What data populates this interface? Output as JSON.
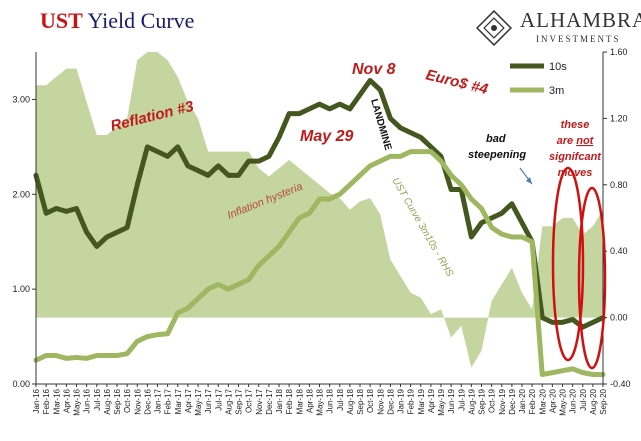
{
  "header": {
    "title_prefix": "UST",
    "title_rest": " Yield Curve",
    "logo_name": "ALHAMBRA",
    "logo_sub": "INVESTMENTS"
  },
  "chart_data": {
    "type": "line",
    "x": [
      "Jan-16",
      "Feb-16",
      "Mar-16",
      "Apr-16",
      "May-16",
      "Jun-16",
      "Jul-16",
      "Aug-16",
      "Sep-16",
      "Oct-16",
      "Nov-16",
      "Dec-16",
      "Jan-17",
      "Feb-17",
      "Mar-17",
      "Apr-17",
      "May-17",
      "Jun-17",
      "Jul-17",
      "Aug-17",
      "Sep-17",
      "Oct-17",
      "Nov-17",
      "Dec-17",
      "Jan-18",
      "Feb-18",
      "Mar-18",
      "Apr-18",
      "May-18",
      "Jun-18",
      "Jul-18",
      "Aug-18",
      "Sep-18",
      "Oct-18",
      "Nov-18",
      "Dec-18",
      "Jan-19",
      "Feb-19",
      "Mar-19",
      "Apr-19",
      "May-19",
      "Jun-19",
      "Jul-19",
      "Aug-19",
      "Sep-19",
      "Oct-19",
      "Nov-19",
      "Dec-19",
      "Jan-20",
      "Feb-20",
      "Mar-20",
      "Apr-20",
      "May-20",
      "Jun-20",
      "Jul-20",
      "Aug-20",
      "Sep-20"
    ],
    "y_left": {
      "min": 0,
      "max": 3.5,
      "ticks": [
        "0.00",
        "1.00",
        "2.00",
        "3.00"
      ]
    },
    "y_right": {
      "min": -0.4,
      "max": 1.6,
      "ticks": [
        "-0.40",
        "0.00",
        "0.40",
        "0.80",
        "1.20",
        "1.60"
      ]
    },
    "series": [
      {
        "name": "10s",
        "axis": "left",
        "color": "#44571f",
        "values": [
          2.2,
          1.8,
          1.85,
          1.82,
          1.85,
          1.6,
          1.45,
          1.55,
          1.6,
          1.65,
          2.1,
          2.5,
          2.45,
          2.4,
          2.5,
          2.3,
          2.25,
          2.2,
          2.3,
          2.2,
          2.2,
          2.35,
          2.35,
          2.4,
          2.6,
          2.85,
          2.85,
          2.9,
          2.95,
          2.9,
          2.95,
          2.9,
          3.05,
          3.2,
          3.1,
          2.8,
          2.7,
          2.65,
          2.6,
          2.5,
          2.4,
          2.05,
          2.05,
          1.55,
          1.7,
          1.75,
          1.8,
          1.9,
          1.7,
          1.5,
          0.7,
          0.65,
          0.65,
          0.68,
          0.6,
          0.65,
          0.7
        ]
      },
      {
        "name": "3m",
        "axis": "left",
        "color": "#9fb760",
        "values": [
          0.25,
          0.3,
          0.3,
          0.27,
          0.28,
          0.27,
          0.3,
          0.3,
          0.3,
          0.32,
          0.45,
          0.5,
          0.52,
          0.53,
          0.75,
          0.8,
          0.9,
          1.0,
          1.05,
          1.0,
          1.05,
          1.1,
          1.25,
          1.35,
          1.45,
          1.6,
          1.75,
          1.8,
          1.95,
          1.95,
          2.0,
          2.1,
          2.2,
          2.3,
          2.35,
          2.4,
          2.4,
          2.45,
          2.45,
          2.45,
          2.35,
          2.2,
          2.1,
          1.95,
          1.85,
          1.65,
          1.58,
          1.55,
          1.55,
          1.5,
          0.1,
          0.12,
          0.14,
          0.16,
          0.12,
          0.1,
          0.1
        ]
      },
      {
        "name": "UST Curve 3m10s - RHS",
        "axis": "right",
        "color": "#c5d5a0",
        "values": [
          1.4,
          1.4,
          1.45,
          1.5,
          1.5,
          1.3,
          1.1,
          1.1,
          1.15,
          1.2,
          1.55,
          1.6,
          1.6,
          1.55,
          1.45,
          1.3,
          1.2,
          1.0,
          1.0,
          1.0,
          1.0,
          1.0,
          0.9,
          0.85,
          0.9,
          0.95,
          0.9,
          0.85,
          0.8,
          0.75,
          0.72,
          0.65,
          0.7,
          0.72,
          0.62,
          0.35,
          0.25,
          0.15,
          0.12,
          0.02,
          0.05,
          -0.12,
          -0.05,
          -0.3,
          -0.2,
          0.1,
          0.2,
          0.3,
          0.15,
          0.05,
          0.55,
          0.55,
          0.6,
          0.6,
          0.5,
          0.55,
          0.65
        ]
      }
    ],
    "annotations": [
      {
        "text": "Reflation #3",
        "color": "#c01a1a"
      },
      {
        "text": "May 29",
        "color": "#c01a1a"
      },
      {
        "text": "Nov 8",
        "color": "#c01a1a"
      },
      {
        "text": "Euro$ #4",
        "color": "#c01a1a"
      },
      {
        "text": "LANDMINE",
        "color": "#111111"
      },
      {
        "text": "Inflation hysteria",
        "color": "#b84a3a"
      },
      {
        "text": "UST Curve 3m10s - RHS",
        "color": "#8aa850"
      },
      {
        "text": "bad steepening",
        "color": "#111111"
      },
      {
        "text": "these are not signifcant moves",
        "color": "#c01a1a"
      }
    ],
    "legend": {
      "placement": "top-right",
      "items": [
        "10s",
        "3m"
      ]
    },
    "grid": false
  }
}
